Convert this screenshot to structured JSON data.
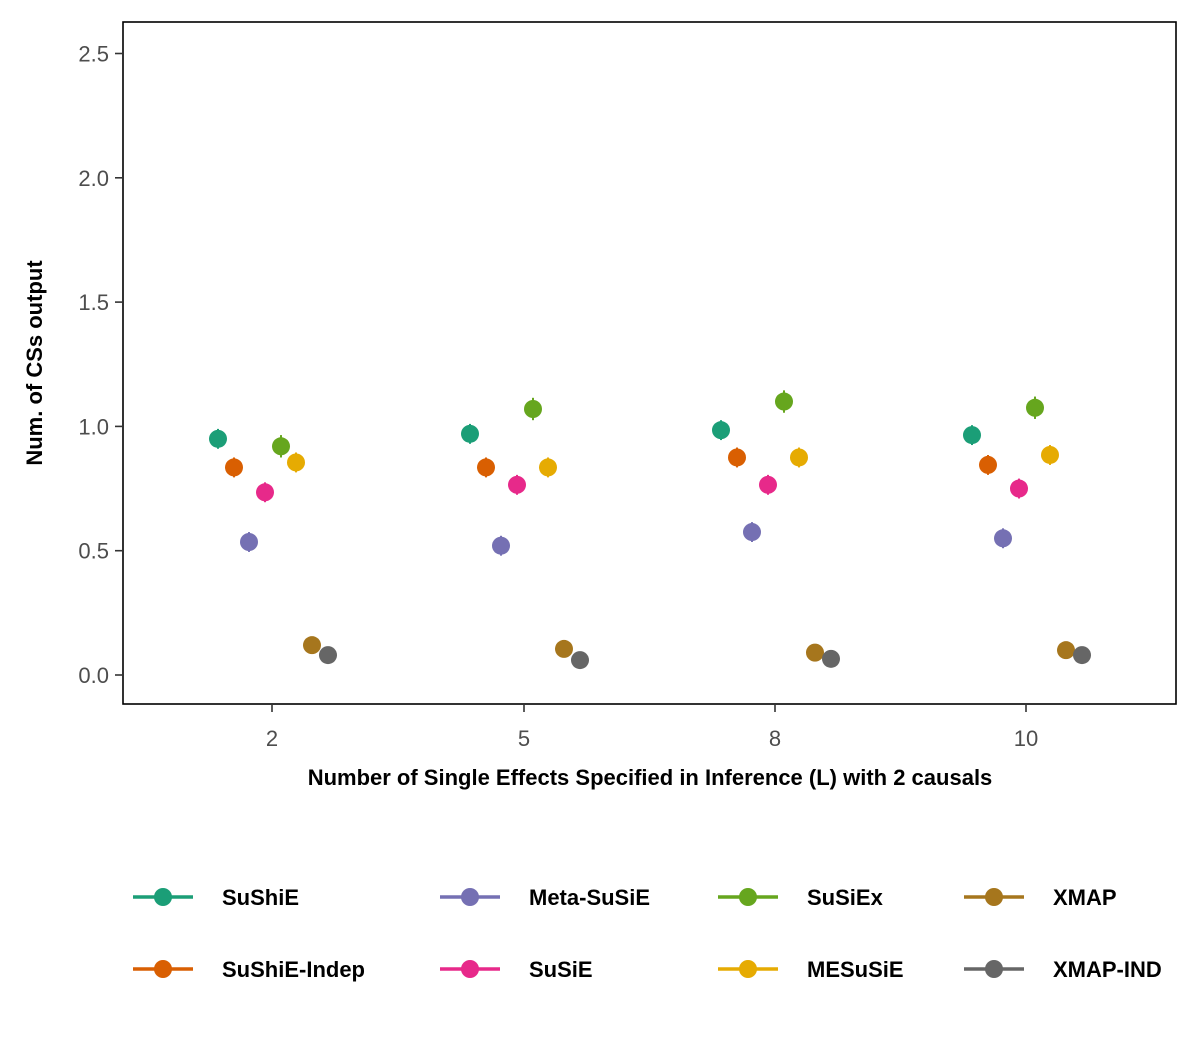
{
  "chart_data": {
    "type": "scatter",
    "title": "",
    "xlabel": "Number of Single Effects Specified in Inference (L) with 2 causals",
    "ylabel": "Num. of CSs output",
    "categories": [
      "2",
      "5",
      "8",
      "10"
    ],
    "ylim": [
      -0.12,
      2.62
    ],
    "yticks": [
      0.0,
      0.5,
      1.0,
      1.5,
      2.0,
      2.5
    ],
    "ytick_labels": [
      "0.0",
      "0.5",
      "1.0",
      "1.5",
      "2.0",
      "2.5"
    ],
    "grid": false,
    "legend_position": "bottom",
    "series": [
      {
        "name": "SuShiE",
        "color": "#1B9E77",
        "values": [
          0.95,
          0.97,
          0.985,
          0.965
        ],
        "err": [
          0.04,
          0.04,
          0.04,
          0.04
        ]
      },
      {
        "name": "SuShiE-Indep",
        "color": "#D95F02",
        "values": [
          0.835,
          0.835,
          0.875,
          0.845
        ],
        "err": [
          0.04,
          0.04,
          0.04,
          0.04
        ]
      },
      {
        "name": "Meta-SuSiE",
        "color": "#7570B3",
        "values": [
          0.535,
          0.52,
          0.575,
          0.55
        ],
        "err": [
          0.04,
          0.04,
          0.04,
          0.04
        ]
      },
      {
        "name": "SuSiE",
        "color": "#E7298A",
        "values": [
          0.735,
          0.765,
          0.765,
          0.75
        ],
        "err": [
          0.04,
          0.04,
          0.04,
          0.04
        ]
      },
      {
        "name": "SuSiEx",
        "color": "#66A61E",
        "values": [
          0.92,
          1.07,
          1.1,
          1.075
        ],
        "err": [
          0.045,
          0.045,
          0.045,
          0.045
        ]
      },
      {
        "name": "MESuSiE",
        "color": "#E6AB02",
        "values": [
          0.855,
          0.835,
          0.875,
          0.885
        ],
        "err": [
          0.04,
          0.04,
          0.04,
          0.04
        ]
      },
      {
        "name": "XMAP",
        "color": "#A6761D",
        "values": [
          0.12,
          0.105,
          0.09,
          0.1
        ],
        "err": [
          0.015,
          0.015,
          0.015,
          0.015
        ]
      },
      {
        "name": "XMAP-IND",
        "color": "#666666",
        "values": [
          0.08,
          0.06,
          0.065,
          0.08
        ],
        "err": [
          0.015,
          0.015,
          0.015,
          0.015
        ]
      }
    ],
    "legend_order": [
      "SuShiE",
      "Meta-SuSiE",
      "SuSiEx",
      "XMAP",
      "SuShiE-Indep",
      "SuSiE",
      "MESuSiE",
      "XMAP-IND"
    ]
  }
}
